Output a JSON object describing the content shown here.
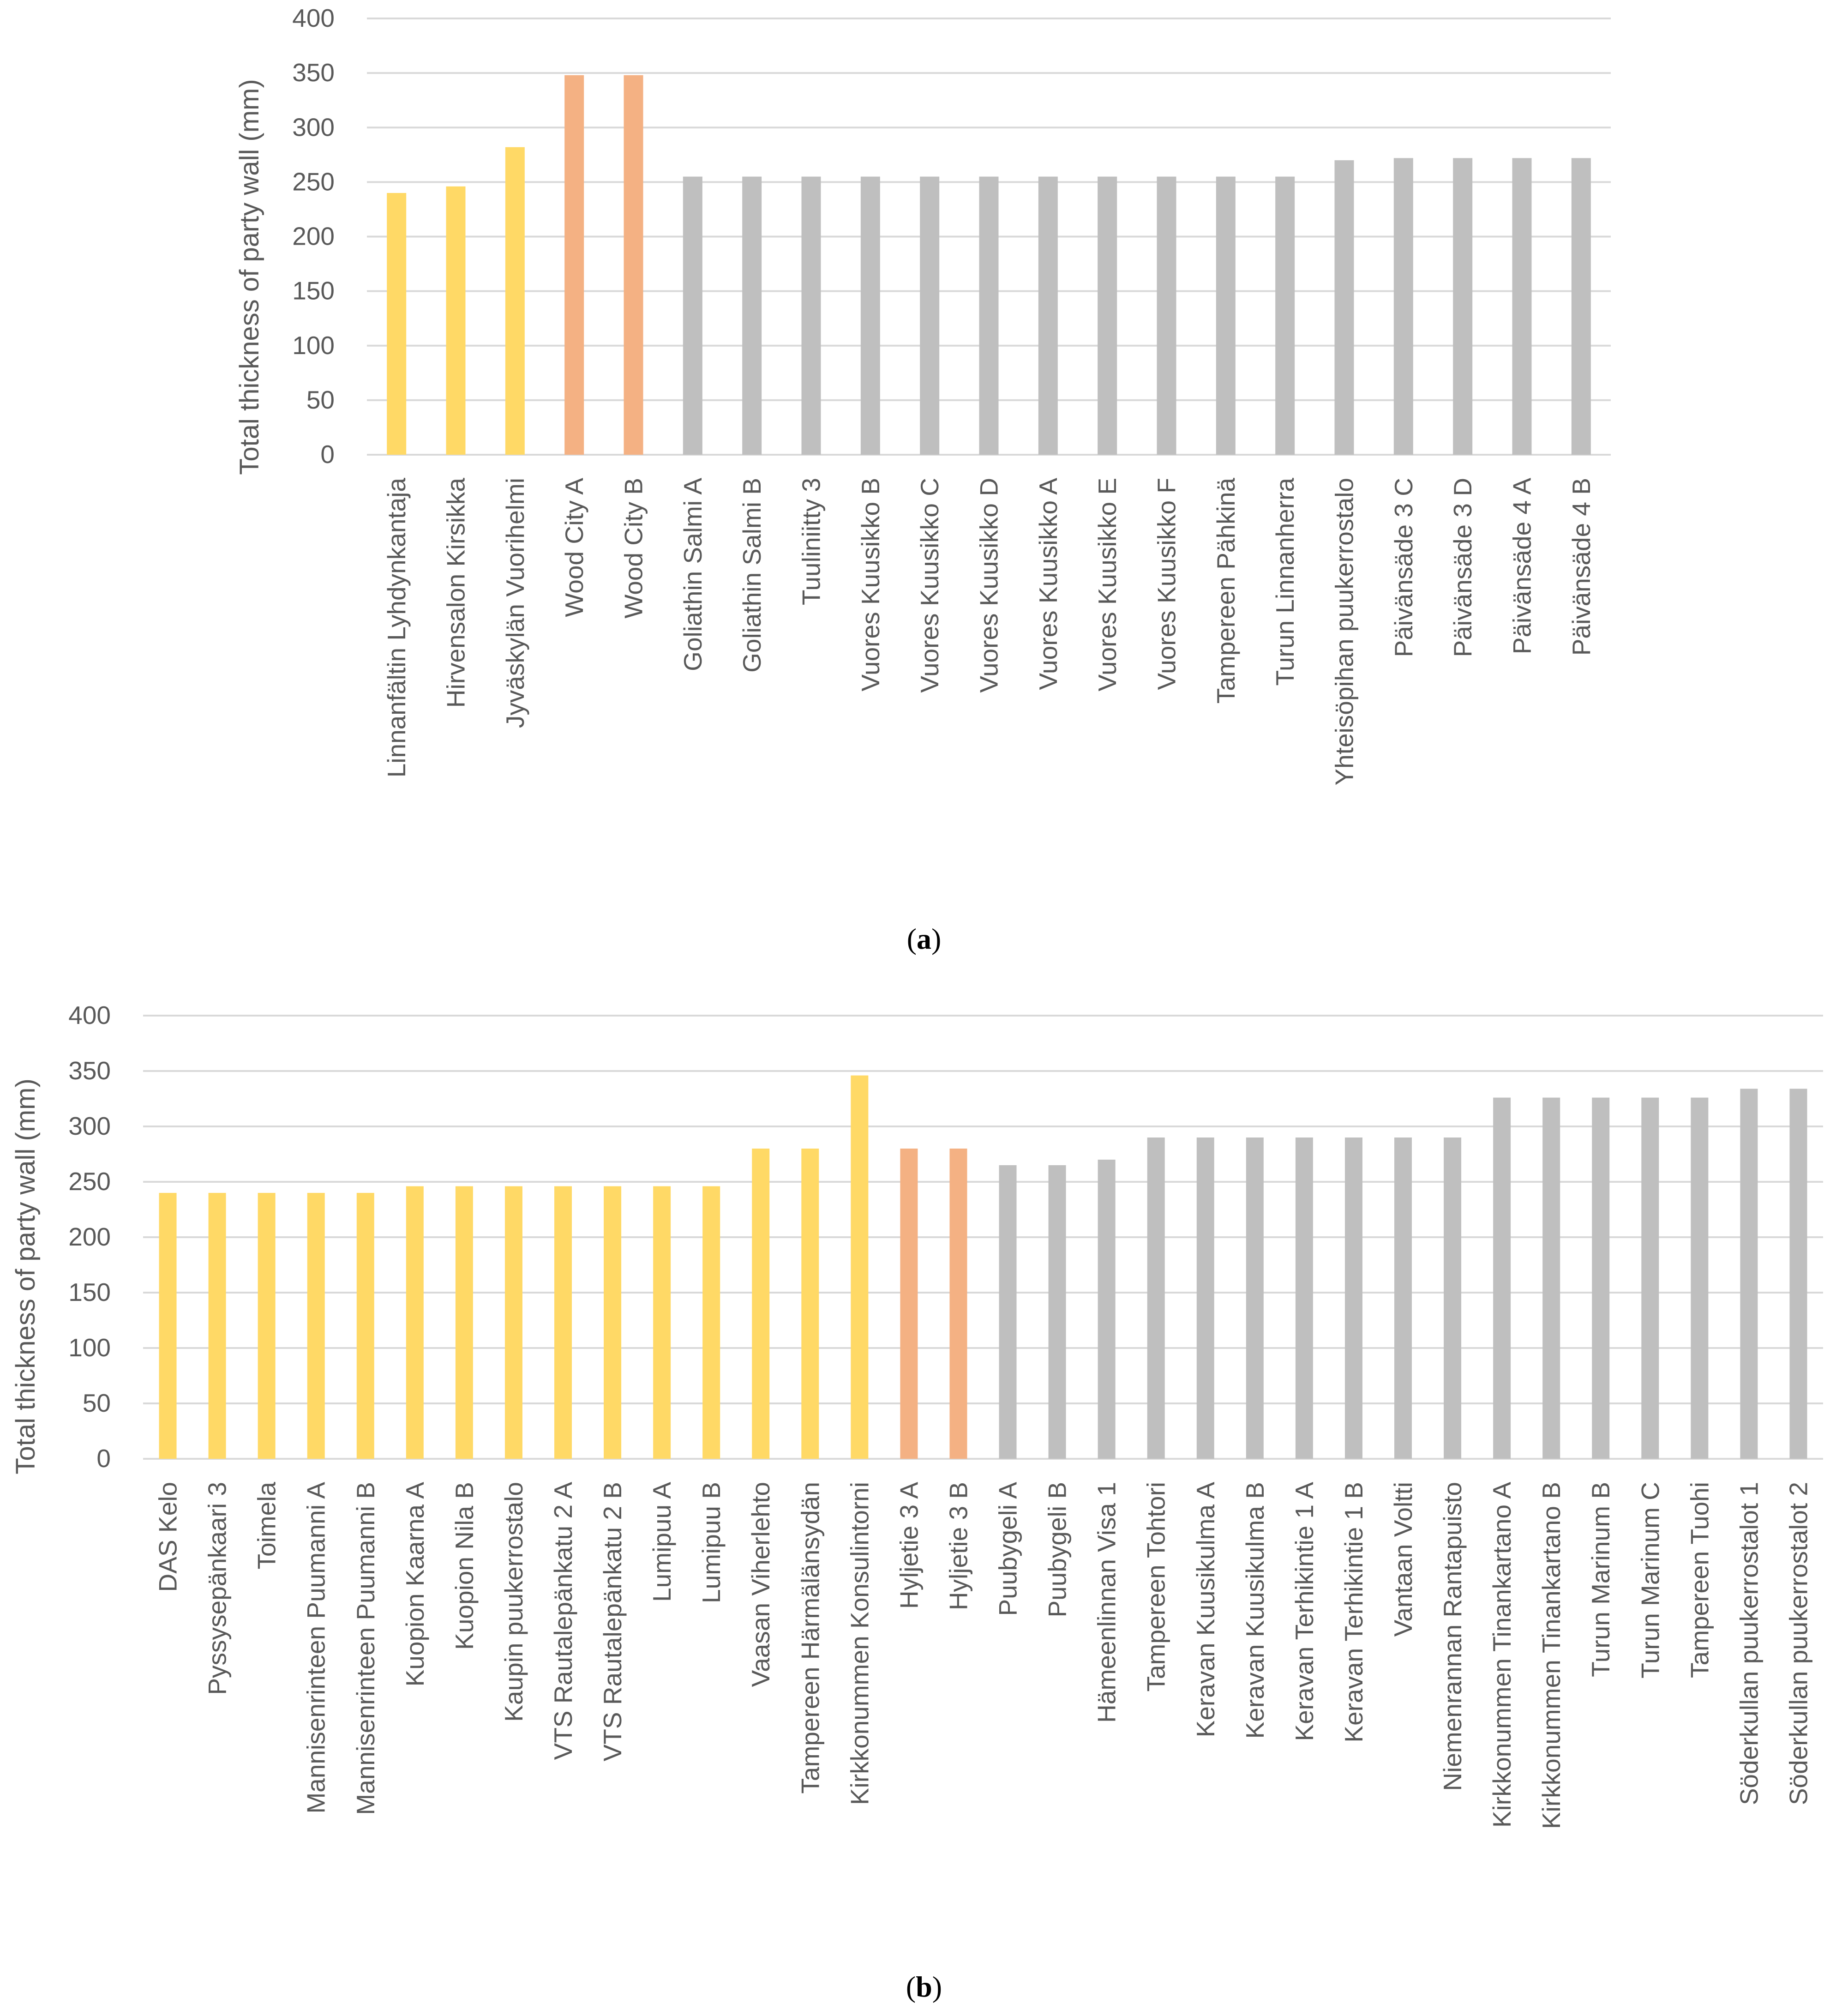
{
  "colors": {
    "group1": "#FFD966",
    "group2": "#F4B183",
    "group3": "#BFBFBF",
    "grid": "#D9D9D9",
    "text": "#595959"
  },
  "chart_data": [
    {
      "type": "bar",
      "id": "a",
      "sublabel": {
        "open": "(",
        "letter": "a",
        "close": ")"
      },
      "ylabel": "Total thickness of party wall (mm)",
      "xlabel": "",
      "ylim": [
        0,
        400
      ],
      "yticks": [
        0,
        50,
        100,
        150,
        200,
        250,
        300,
        350,
        400
      ],
      "categories": [
        "Linnanfältin Lyhdynkantaja",
        "Hirvensalon Kirsikka",
        "Jyväskylän Vuorihelmi",
        "Wood City A",
        "Wood City B",
        "Goliathin Salmi A",
        "Goliathin Salmi B",
        "Tuuliniitty 3",
        "Vuores Kuusikko B",
        "Vuores Kuusikko C",
        "Vuores Kuusikko D",
        "Vuores Kuusikko A",
        "Vuores Kuusikko E",
        "Vuores Kuusikko F",
        "Tampereen Pähkinä",
        "Turun Linnanherra",
        "Yhteisöpihan puukerrostalo",
        "Päivänsäde 3 C",
        "Päivänsäde 3 D",
        "Päivänsäde 4 A",
        "Päivänsäde 4 B"
      ],
      "values": [
        240,
        246,
        282,
        348,
        348,
        255,
        255,
        255,
        255,
        255,
        255,
        255,
        255,
        255,
        255,
        255,
        270,
        272,
        272,
        272,
        272
      ],
      "groups": [
        1,
        1,
        1,
        2,
        2,
        3,
        3,
        3,
        3,
        3,
        3,
        3,
        3,
        3,
        3,
        3,
        3,
        3,
        3,
        3,
        3
      ]
    },
    {
      "type": "bar",
      "id": "b",
      "sublabel": {
        "open": "(",
        "letter": "b",
        "close": ")"
      },
      "ylabel": "Total thickness of party wall (mm)",
      "xlabel": "",
      "ylim": [
        0,
        400
      ],
      "yticks": [
        0,
        50,
        100,
        150,
        200,
        250,
        300,
        350,
        400
      ],
      "categories": [
        "DAS Kelo",
        "Pyssysepänkaari 3",
        "Toimela",
        "Mannisenrinteen Puumanni A",
        "Mannisenrinteen Puumanni B",
        "Kuopion Kaarna A",
        "Kuopion Nila B",
        "Kaupin puukerrostalo",
        "VTS Rautalepänkatu 2 A",
        "VTS Rautalepänkatu 2 B",
        "Lumipuu A",
        "Lumipuu B",
        "Vaasan Viherlehto",
        "Tampereen Härmälänsydän",
        "Kirkkonummen Konsulintorni",
        "Hyljetie 3 A",
        "Hyljetie 3 B",
        "Puubygeli A",
        "Puubygeli B",
        "Hämeenlinnan Visa 1",
        "Tampereen Tohtori",
        "Keravan Kuusikulma A",
        "Keravan Kuusikulma B",
        "Keravan Terhikintie 1 A",
        "Keravan Terhikintie 1 B",
        "Vantaan Voltti",
        "Niemenrannan Rantapuisto",
        "Kirkkonummen Tinankartano A",
        "Kirkkonummen Tinankartano B",
        "Turun Marinum B",
        "Turun Marinum C",
        "Tampereen Tuohi",
        "Söderkullan puukerrostalot 1",
        "Söderkullan puukerrostalot 2"
      ],
      "values": [
        240,
        240,
        240,
        240,
        240,
        246,
        246,
        246,
        246,
        246,
        246,
        246,
        280,
        280,
        346,
        280,
        280,
        265,
        265,
        270,
        290,
        290,
        290,
        290,
        290,
        290,
        290,
        326,
        326,
        326,
        326,
        326,
        334,
        334
      ],
      "groups": [
        1,
        1,
        1,
        1,
        1,
        1,
        1,
        1,
        1,
        1,
        1,
        1,
        1,
        1,
        1,
        2,
        2,
        3,
        3,
        3,
        3,
        3,
        3,
        3,
        3,
        3,
        3,
        3,
        3,
        3,
        3,
        3,
        3,
        3
      ]
    }
  ]
}
